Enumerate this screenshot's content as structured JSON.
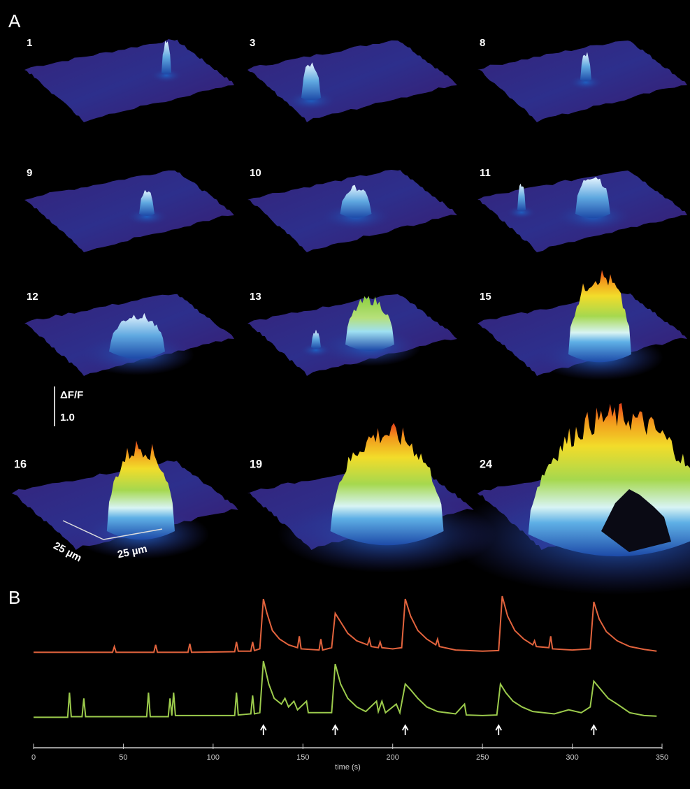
{
  "panel_a": {
    "label": "A",
    "frames": [
      "1",
      "3",
      "8",
      "9",
      "10",
      "11",
      "12",
      "13",
      "15",
      "16",
      "19",
      "24"
    ],
    "scale_bar": {
      "quantity": "ΔF/F",
      "value": "1.0"
    },
    "axis_labels": [
      "25 µm",
      "25 µm"
    ]
  },
  "panel_b_label": "B",
  "chart_data": {
    "type": "line",
    "xlabel": "time (s)",
    "xlim": [
      0,
      350
    ],
    "xticks": [
      0,
      50,
      100,
      150,
      200,
      250,
      300,
      350
    ],
    "stimuli": [
      128,
      168,
      207,
      259,
      312
    ],
    "series": [
      {
        "color": "#e2633d",
        "x": [
          0,
          44,
          45,
          46,
          67,
          68,
          69,
          86,
          87,
          88,
          112,
          113,
          114,
          121,
          122,
          123,
          126,
          128,
          130,
          133,
          137,
          142,
          147,
          148,
          149,
          159,
          160,
          161,
          166,
          168,
          171,
          175,
          180,
          186,
          187,
          188,
          192,
          193,
          194,
          200,
          205,
          207,
          210,
          214,
          219,
          224,
          225,
          226,
          235,
          250,
          259,
          261,
          264,
          268,
          273,
          278,
          279,
          280,
          287,
          288,
          289,
          300,
          310,
          312,
          315,
          319,
          325,
          332,
          340,
          347
        ],
        "values": [
          0.02,
          0.02,
          0.12,
          0.02,
          0.02,
          0.15,
          0.02,
          0.02,
          0.17,
          0.02,
          0.03,
          0.2,
          0.04,
          0.04,
          0.2,
          0.05,
          0.08,
          0.95,
          0.7,
          0.4,
          0.25,
          0.15,
          0.1,
          0.3,
          0.08,
          0.06,
          0.25,
          0.06,
          0.1,
          0.7,
          0.55,
          0.35,
          0.22,
          0.15,
          0.25,
          0.12,
          0.1,
          0.2,
          0.1,
          0.08,
          0.1,
          0.95,
          0.65,
          0.4,
          0.25,
          0.15,
          0.25,
          0.12,
          0.06,
          0.04,
          0.05,
          1.0,
          0.65,
          0.4,
          0.25,
          0.15,
          0.22,
          0.12,
          0.1,
          0.3,
          0.08,
          0.06,
          0.08,
          0.9,
          0.6,
          0.38,
          0.22,
          0.12,
          0.07,
          0.04
        ]
      },
      {
        "color": "#9ccb4c",
        "x": [
          0,
          19,
          20,
          21,
          27,
          28,
          29,
          63,
          64,
          65,
          75,
          76,
          77,
          78,
          79,
          112,
          113,
          114,
          121,
          122,
          123,
          126,
          128,
          131,
          134,
          138,
          140,
          142,
          145,
          147,
          152,
          153,
          166,
          168,
          171,
          175,
          180,
          185,
          191,
          192,
          194,
          196,
          202,
          204,
          207,
          210,
          214,
          219,
          225,
          235,
          240,
          241,
          250,
          258,
          260,
          263,
          267,
          272,
          278,
          290,
          298,
          305,
          310,
          312,
          316,
          320,
          325,
          332,
          340,
          347
        ],
        "values": [
          0.02,
          0.02,
          0.45,
          0.03,
          0.03,
          0.35,
          0.03,
          0.03,
          0.45,
          0.03,
          0.03,
          0.35,
          0.05,
          0.45,
          0.05,
          0.05,
          0.45,
          0.06,
          0.08,
          0.4,
          0.08,
          0.1,
          1.0,
          0.6,
          0.35,
          0.25,
          0.35,
          0.2,
          0.3,
          0.15,
          0.3,
          0.1,
          0.1,
          0.95,
          0.6,
          0.35,
          0.2,
          0.12,
          0.3,
          0.12,
          0.3,
          0.1,
          0.25,
          0.1,
          0.6,
          0.5,
          0.35,
          0.2,
          0.12,
          0.08,
          0.25,
          0.06,
          0.05,
          0.06,
          0.6,
          0.45,
          0.3,
          0.2,
          0.12,
          0.08,
          0.15,
          0.1,
          0.2,
          0.65,
          0.5,
          0.35,
          0.25,
          0.1,
          0.05,
          0.04
        ]
      }
    ]
  }
}
